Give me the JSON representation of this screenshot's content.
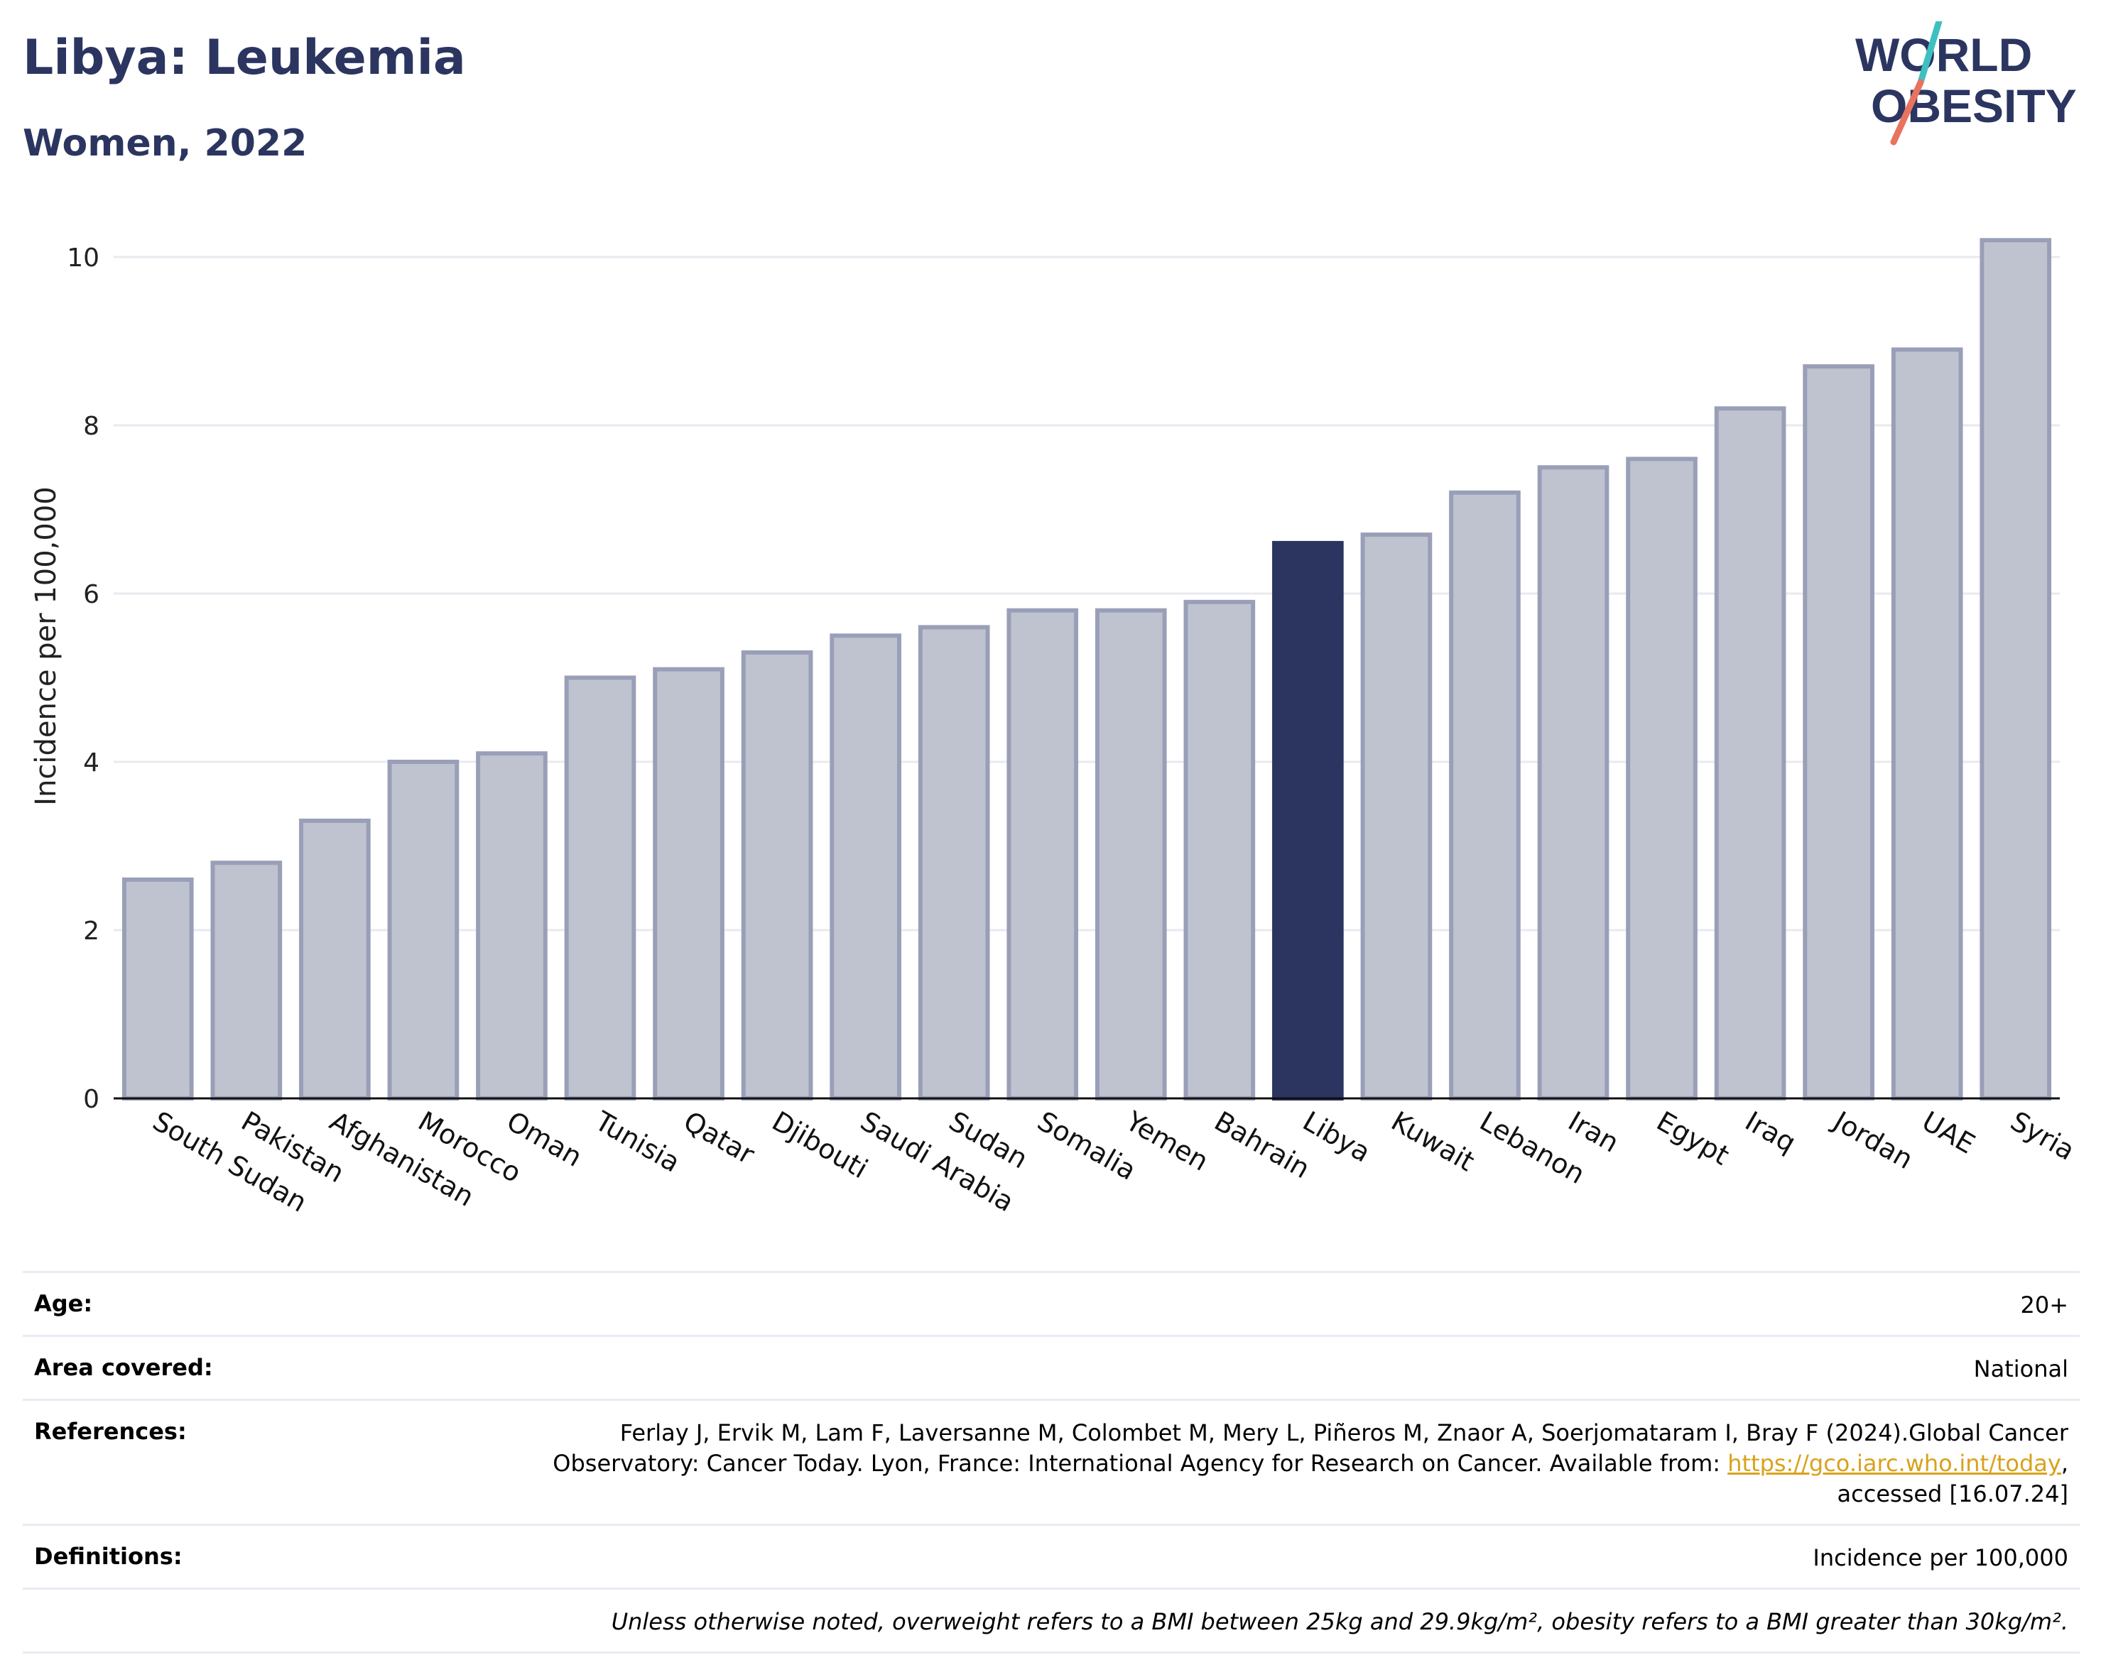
{
  "header": {
    "title": "Libya: Leukemia",
    "subtitle": "Women, 2022"
  },
  "logo": {
    "line1": "WORLD",
    "line2": "OBESITY",
    "colors": {
      "text": "#2b3560",
      "slash_top": "#3ec0c0",
      "slash_bottom": "#e8735f"
    }
  },
  "chart_data": {
    "type": "bar",
    "title": "",
    "xlabel": "",
    "ylabel": "Incidence per 100,000",
    "ylim": [
      0,
      10.5
    ],
    "yticks": [
      0,
      2,
      4,
      6,
      8,
      10
    ],
    "grid": true,
    "legend": "none",
    "highlight": "Libya",
    "colors": {
      "bar": "#bfc3d0",
      "bar_border": "#9a9fb8",
      "highlight": "#2b3560",
      "grid": "#e8eaf0"
    },
    "categories": [
      "South Sudan",
      "Pakistan",
      "Afghanistan",
      "Morocco",
      "Oman",
      "Tunisia",
      "Qatar",
      "Djibouti",
      "Saudi Arabia",
      "Sudan",
      "Somalia",
      "Yemen",
      "Bahrain",
      "Libya",
      "Kuwait",
      "Lebanon",
      "Iran",
      "Egypt",
      "Iraq",
      "Jordan",
      "UAE",
      "Syria"
    ],
    "values": [
      2.6,
      2.8,
      3.3,
      4.0,
      4.1,
      5.0,
      5.1,
      5.3,
      5.5,
      5.6,
      5.8,
      5.8,
      5.9,
      6.6,
      6.7,
      7.2,
      7.5,
      7.6,
      8.2,
      8.7,
      8.9,
      10.2
    ]
  },
  "meta": {
    "age_label": "Age:",
    "age_value": "20+",
    "area_label": "Area covered:",
    "area_value": "National",
    "references_label": "References:",
    "references_text_1": "Ferlay J, Ervik M, Lam F, Laversanne M, Colombet M, Mery L, Piñeros M, Znaor A, Soerjomataram I, Bray F (2024).Global Cancer Observatory: Cancer Today. Lyon, France: International Agency for Research on Cancer. Available from: ",
    "references_link": "https://gco.iarc.who.int/today",
    "references_text_2": ", accessed [16.07.24]",
    "definitions_label": "Definitions:",
    "definitions_value": "Incidence per 100,000",
    "note": "Unless otherwise noted, overweight refers to a BMI between 25kg and 29.9kg/m², obesity refers to a BMI greater than 30kg/m²."
  }
}
